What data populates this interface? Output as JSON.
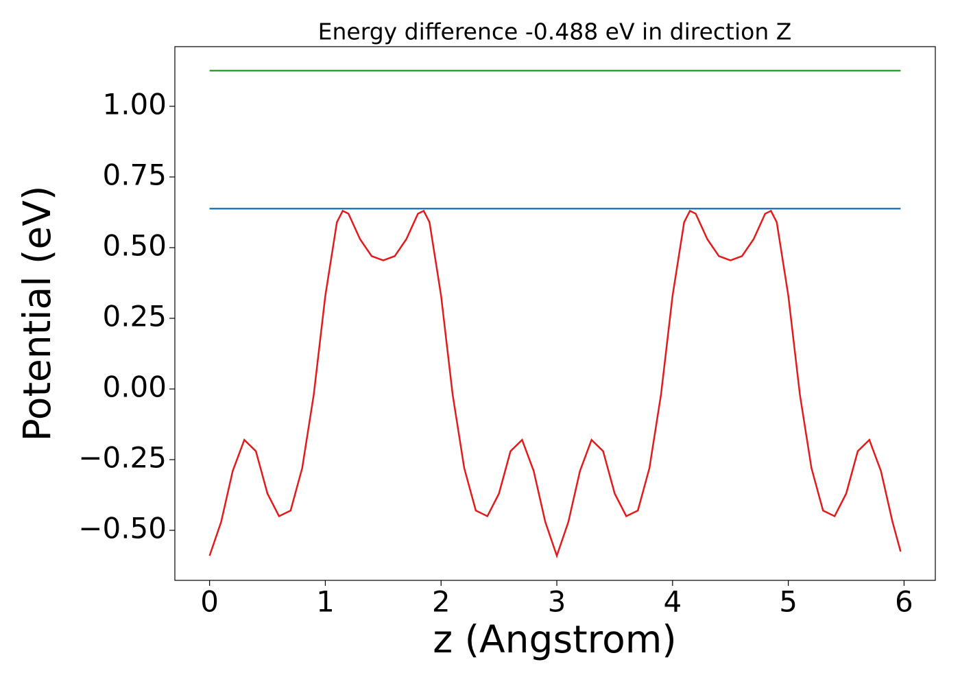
{
  "chart_data": {
    "type": "line",
    "title": "Energy difference -0.488 eV in direction Z",
    "xlabel": "z (Angstrom)",
    "ylabel": "Potential (eV)",
    "xlim": [
      -0.3,
      6.27
    ],
    "ylim": [
      -0.677,
      1.211
    ],
    "xticks": [
      0,
      1,
      2,
      3,
      4,
      5,
      6
    ],
    "yticks": [
      {
        "value": -0.5,
        "label": "−0.50"
      },
      {
        "value": -0.25,
        "label": "−0.25"
      },
      {
        "value": 0,
        "label": "0.00"
      },
      {
        "value": 0.25,
        "label": "0.25"
      },
      {
        "value": 0.5,
        "label": "0.50"
      },
      {
        "value": 0.75,
        "label": "0.75"
      },
      {
        "value": 1,
        "label": "1.00"
      }
    ],
    "series": [
      {
        "color": "#1f77b4",
        "x": [
          0,
          5.97
        ],
        "values": [
          0.638,
          0.638
        ]
      },
      {
        "color": "#2ca02c",
        "x": [
          0,
          5.97
        ],
        "values": [
          1.126,
          1.126
        ]
      },
      {
        "color": "#e31a1c",
        "x": [
          0,
          0.1,
          0.2,
          0.3,
          0.4,
          0.5,
          0.6,
          0.7,
          0.8,
          0.9,
          1.0,
          1.1,
          1.15,
          1.2,
          1.3,
          1.4,
          1.5,
          1.6,
          1.7,
          1.8,
          1.85,
          1.9,
          2.0,
          2.1,
          2.2,
          2.3,
          2.4,
          2.5,
          2.6,
          2.7,
          2.8,
          2.9,
          3.0,
          3.1,
          3.2,
          3.3,
          3.4,
          3.5,
          3.6,
          3.7,
          3.8,
          3.9,
          4.0,
          4.1,
          4.15,
          4.2,
          4.3,
          4.4,
          4.5,
          4.6,
          4.7,
          4.8,
          4.85,
          4.9,
          5.0,
          5.1,
          5.2,
          5.3,
          5.4,
          5.5,
          5.6,
          5.7,
          5.8,
          5.9,
          5.97
        ],
        "values": [
          -0.59,
          -0.47,
          -0.29,
          -0.18,
          -0.22,
          -0.37,
          -0.45,
          -0.43,
          -0.28,
          -0.02,
          0.33,
          0.59,
          0.63,
          0.62,
          0.53,
          0.47,
          0.455,
          0.47,
          0.53,
          0.62,
          0.63,
          0.59,
          0.33,
          -0.02,
          -0.28,
          -0.43,
          -0.45,
          -0.37,
          -0.22,
          -0.18,
          -0.29,
          -0.47,
          -0.59,
          -0.47,
          -0.29,
          -0.18,
          -0.22,
          -0.37,
          -0.45,
          -0.43,
          -0.28,
          -0.02,
          0.33,
          0.59,
          0.63,
          0.62,
          0.53,
          0.47,
          0.455,
          0.47,
          0.53,
          0.62,
          0.63,
          0.59,
          0.33,
          -0.02,
          -0.28,
          -0.43,
          -0.45,
          -0.37,
          -0.22,
          -0.18,
          -0.29,
          -0.47,
          -0.575
        ]
      }
    ]
  }
}
